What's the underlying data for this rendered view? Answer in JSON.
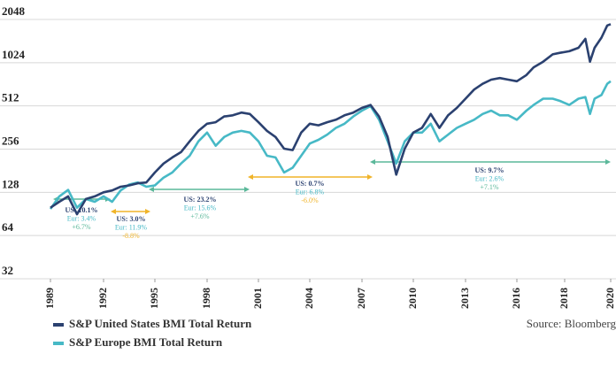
{
  "chart_data": {
    "type": "line",
    "log_y": true,
    "grid": true,
    "ylim": [
      32,
      2048
    ],
    "yticks": [
      32,
      64,
      128,
      256,
      512,
      1024,
      2048
    ],
    "xlim": [
      1989,
      2020
    ],
    "xticks": [
      1989,
      1992,
      1995,
      1998,
      2001,
      2004,
      2007,
      2010,
      2013,
      2016,
      2018,
      2020
    ],
    "x": [
      1989,
      1989.5,
      1990,
      1990.5,
      1991,
      1991.5,
      1992,
      1992.5,
      1993,
      1993.5,
      1994,
      1994.5,
      1995,
      1995.5,
      1996,
      1996.5,
      1997,
      1997.5,
      1998,
      1998.5,
      1999,
      1999.5,
      2000,
      2000.5,
      2001,
      2001.5,
      2002,
      2002.5,
      2003,
      2003.5,
      2004,
      2004.5,
      2005,
      2005.5,
      2006,
      2006.5,
      2007,
      2007.5,
      2008,
      2008.5,
      2009,
      2009.5,
      2010,
      2010.5,
      2011,
      2011.5,
      2012,
      2012.5,
      2013,
      2013.5,
      2014,
      2014.5,
      2015,
      2015.5,
      2016,
      2016.4,
      2016.7,
      2017.1,
      2017.5,
      2017.8,
      2018.2,
      2018.6,
      2018.9,
      2019.1,
      2019.3,
      2019.6,
      2019.85,
      2020
    ],
    "series": [
      {
        "name": "S&P United States BMI Total Return",
        "color": "#2b4170",
        "values": [
          100,
          110,
          120,
          90,
          115,
          120,
          128,
          132,
          140,
          143,
          148,
          150,
          176,
          203,
          224,
          244,
          290,
          343,
          385,
          394,
          432,
          440,
          460,
          450,
          394,
          343,
          311,
          258,
          252,
          334,
          385,
          375,
          394,
          410,
          440,
          460,
          496,
          520,
          432,
          311,
          170,
          258,
          334,
          360,
          450,
          360,
          440,
          496,
          575,
          665,
          730,
          780,
          800,
          780,
          760,
          840,
          950,
          1040,
          1170,
          1200,
          1230,
          1300,
          1500,
          1040,
          1300,
          1530,
          1860,
          1900
        ]
      },
      {
        "name": "S&P Europe BMI Total Return",
        "color": "#47b9c6",
        "values": [
          98,
          120,
          133,
          100,
          115,
          110,
          120,
          110,
          132,
          145,
          150,
          140,
          143,
          162,
          176,
          203,
          230,
          290,
          334,
          270,
          311,
          334,
          343,
          334,
          290,
          230,
          224,
          176,
          190,
          230,
          280,
          297,
          323,
          360,
          385,
          432,
          475,
          510,
          410,
          290,
          203,
          290,
          334,
          334,
          385,
          290,
          323,
          360,
          385,
          410,
          450,
          475,
          440,
          440,
          410,
          475,
          520,
          575,
          575,
          555,
          520,
          575,
          590,
          450,
          575,
          610,
          730,
          760
        ]
      }
    ],
    "annotations": [
      {
        "lines": [
          "US: 10.1%",
          "Eur: 3.4%",
          "+6.7%"
        ],
        "color": "#5bb89a"
      },
      {
        "lines": [
          "US: 3.0%",
          "Eur: 11.9%",
          "-8.8%"
        ],
        "color": "#f0b429"
      },
      {
        "lines": [
          "US: 23.2%",
          "Eur: 15.6%",
          "+7.6%"
        ],
        "color": "#5bb89a"
      },
      {
        "lines": [
          "US: 0.7%",
          "Eur: 6.8%",
          "-6.0%"
        ],
        "color": "#f0b429"
      },
      {
        "lines": [
          "US: 9.7%",
          "Eur: 2.6%",
          "+7.1%"
        ],
        "color": "#5bb89a"
      }
    ],
    "source": "Source: Bloomberg"
  }
}
